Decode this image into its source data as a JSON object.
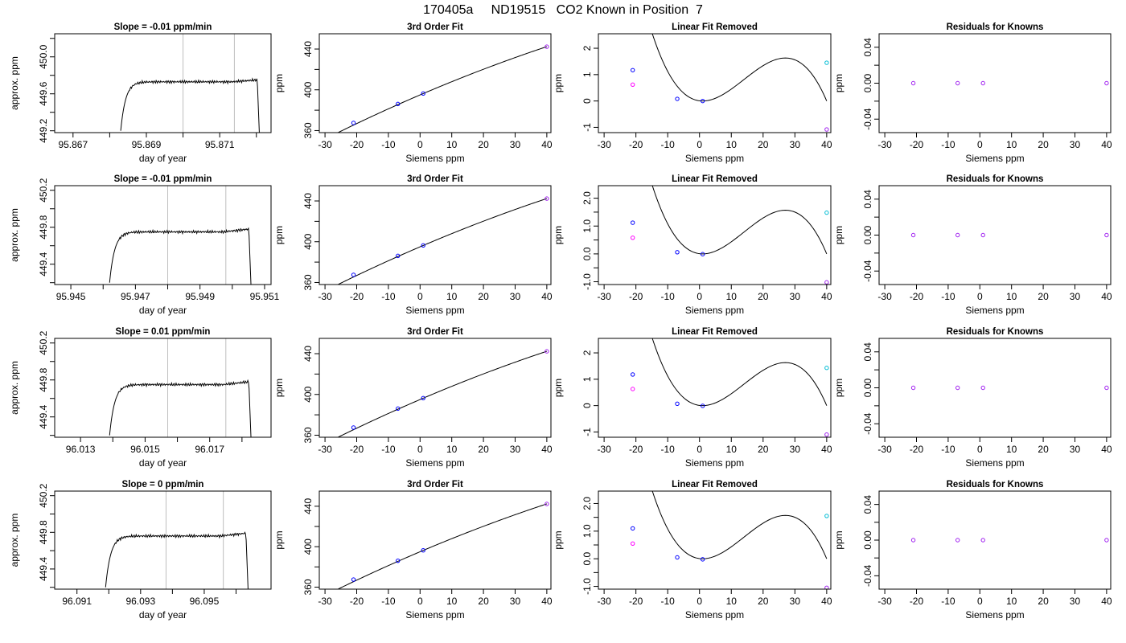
{
  "page": {
    "title": "170405a     ND19515   CO2 Known in Position  7"
  },
  "colors": {
    "axis": "#000000",
    "line": "#000000",
    "vline": "#bebebe",
    "pt_blue": "#0000ff",
    "pt_purple": "#a020f0",
    "pt_magenta": "#ff00ff",
    "pt_cyan": "#00bcd4"
  },
  "chart_data": [
    {
      "type": "line",
      "row": 0,
      "col": 0,
      "title": "Slope =  -0.01  ppm/min",
      "xlabel": "day of year",
      "ylabel": "approx. ppm",
      "xlim": [
        95.8665,
        95.8724
      ],
      "ylim": [
        449.18,
        450.25
      ],
      "xticks": [
        95.867,
        95.869,
        95.871
      ],
      "xticklabels": [
        "95.867",
        "95.869",
        "95.871"
      ],
      "xminor": [
        95.868,
        95.87,
        95.872
      ],
      "yticks": [
        449.2,
        449.6,
        450.0
      ],
      "yticklabels": [
        "449.2",
        "449.6",
        "450.0"
      ],
      "yminor": [
        449.4,
        449.8,
        450.2
      ],
      "vlines": [
        95.87,
        95.8714
      ],
      "trace": {
        "x_start": 95.8683,
        "x_end": 95.8721,
        "plateau": 449.73,
        "start": 449.2,
        "end": 449.75
      }
    },
    {
      "type": "line",
      "row": 1,
      "col": 0,
      "title": "Slope =  -0.01  ppm/min",
      "xlabel": "day of year",
      "ylabel": "approx. ppm",
      "xlim": [
        95.9445,
        95.9512
      ],
      "ylim": [
        449.18,
        450.25
      ],
      "xticks": [
        95.945,
        95.947,
        95.949,
        95.951
      ],
      "xticklabels": [
        "95.945",
        "95.947",
        "95.949",
        "95.951"
      ],
      "xminor": [
        95.946,
        95.948,
        95.95
      ],
      "yticks": [
        449.4,
        449.8,
        450.2
      ],
      "yticklabels": [
        "449.4",
        "449.8",
        "450.2"
      ],
      "yminor": [
        449.2,
        449.6,
        450.0
      ],
      "vlines": [
        95.948,
        95.9498
      ],
      "trace": {
        "x_start": 95.9462,
        "x_end": 95.9506,
        "plateau": 449.75,
        "start": 449.2,
        "end": 449.78
      }
    },
    {
      "type": "line",
      "row": 2,
      "col": 0,
      "title": "Slope =  0.01  ppm/min",
      "xlabel": "day of year",
      "ylabel": "approx. ppm",
      "xlim": [
        96.0122,
        96.0189
      ],
      "ylim": [
        449.18,
        450.25
      ],
      "xticks": [
        96.013,
        96.015,
        96.017
      ],
      "xticklabels": [
        "96.013",
        "96.015",
        "96.017"
      ],
      "xminor": [
        96.014,
        96.016,
        96.018
      ],
      "yticks": [
        449.4,
        449.8,
        450.2
      ],
      "yticklabels": [
        "449.4",
        "449.8",
        "450.2"
      ],
      "yminor": [
        449.2,
        449.6,
        450.0
      ],
      "vlines": [
        96.0157,
        96.0175
      ],
      "trace": {
        "x_start": 96.0139,
        "x_end": 96.0183,
        "plateau": 449.75,
        "start": 449.2,
        "end": 449.78
      }
    },
    {
      "type": "line",
      "row": 3,
      "col": 0,
      "title": "Slope =  0  ppm/min",
      "xlabel": "day of year",
      "ylabel": "approx. ppm",
      "xlim": [
        96.0903,
        96.0971
      ],
      "ylim": [
        449.18,
        450.25
      ],
      "xticks": [
        96.091,
        96.093,
        96.095
      ],
      "xticklabels": [
        "96.091",
        "96.093",
        "96.095"
      ],
      "xminor": [
        96.092,
        96.094,
        96.096
      ],
      "yticks": [
        449.4,
        449.8,
        450.2
      ],
      "yticklabels": [
        "449.4",
        "449.8",
        "450.2"
      ],
      "yminor": [
        449.2,
        449.6,
        450.0
      ],
      "vlines": [
        96.0938,
        96.0956
      ],
      "trace": {
        "x_start": 96.0919,
        "x_end": 96.0964,
        "plateau": 449.76,
        "start": 449.2,
        "end": 449.79
      }
    },
    {
      "type": "line",
      "row": 0,
      "col": 1,
      "title": "3rd Order Fit",
      "xlabel": "Siemens ppm",
      "ylabel": "ppm",
      "xlim": [
        -31.8,
        41.3
      ],
      "ylim": [
        358,
        455
      ],
      "xticks": [
        -30,
        -20,
        -10,
        0,
        10,
        20,
        30,
        40
      ],
      "xticklabels": [
        "-30",
        "-20",
        "-10",
        "0",
        "10",
        "20",
        "30",
        "40"
      ],
      "yticks": [
        360,
        400,
        440
      ],
      "yticklabels": [
        "360",
        "400",
        "440"
      ],
      "yminor": [
        380,
        420
      ],
      "curve": {
        "x0": 395,
        "b": 1.332,
        "c": -0.0037
      },
      "xrange": [
        -30,
        40
      ],
      "points": [
        {
          "x": -21,
          "y": 367.5,
          "color": "pt_blue"
        },
        {
          "x": -7,
          "y": 386.1,
          "color": "pt_blue"
        },
        {
          "x": 1,
          "y": 396.4,
          "color": "pt_blue"
        },
        {
          "x": 40,
          "y": 442.3,
          "color": "pt_purple"
        }
      ]
    },
    {
      "type": "line",
      "row": 1,
      "col": 1,
      "title": "3rd Order Fit",
      "xlabel": "Siemens ppm",
      "ylabel": "ppm",
      "xlim": [
        -31.8,
        41.3
      ],
      "ylim": [
        358,
        455
      ],
      "xticks": [
        -30,
        -20,
        -10,
        0,
        10,
        20,
        30,
        40
      ],
      "xticklabels": [
        "-30",
        "-20",
        "-10",
        "0",
        "10",
        "20",
        "30",
        "40"
      ],
      "yticks": [
        360,
        400,
        440
      ],
      "yticklabels": [
        "360",
        "400",
        "440"
      ],
      "yminor": [
        380,
        420
      ],
      "curve": {
        "x0": 395,
        "b": 1.332,
        "c": -0.0037
      },
      "xrange": [
        -30,
        40
      ],
      "points": [
        {
          "x": -21,
          "y": 367.5,
          "color": "pt_blue"
        },
        {
          "x": -7,
          "y": 386.1,
          "color": "pt_blue"
        },
        {
          "x": 1,
          "y": 396.4,
          "color": "pt_blue"
        },
        {
          "x": 40,
          "y": 442.3,
          "color": "pt_purple"
        }
      ]
    },
    {
      "type": "line",
      "row": 2,
      "col": 1,
      "title": "3rd Order Fit",
      "xlabel": "Siemens ppm",
      "ylabel": "ppm",
      "xlim": [
        -31.8,
        41.3
      ],
      "ylim": [
        358,
        455
      ],
      "xticks": [
        -30,
        -20,
        -10,
        0,
        10,
        20,
        30,
        40
      ],
      "xticklabels": [
        "-30",
        "-20",
        "-10",
        "0",
        "10",
        "20",
        "30",
        "40"
      ],
      "yticks": [
        360,
        400,
        440
      ],
      "yticklabels": [
        "360",
        "400",
        "440"
      ],
      "yminor": [
        380,
        420
      ],
      "curve": {
        "x0": 395,
        "b": 1.332,
        "c": -0.0037
      },
      "xrange": [
        -30,
        40
      ],
      "points": [
        {
          "x": -21,
          "y": 367.5,
          "color": "pt_blue"
        },
        {
          "x": -7,
          "y": 386.1,
          "color": "pt_blue"
        },
        {
          "x": 1,
          "y": 396.4,
          "color": "pt_blue"
        },
        {
          "x": 40,
          "y": 442.3,
          "color": "pt_purple"
        }
      ]
    },
    {
      "type": "line",
      "row": 3,
      "col": 1,
      "title": "3rd Order Fit",
      "xlabel": "Siemens ppm",
      "ylabel": "ppm",
      "xlim": [
        -31.8,
        41.3
      ],
      "ylim": [
        358,
        455
      ],
      "xticks": [
        -30,
        -20,
        -10,
        0,
        10,
        20,
        30,
        40
      ],
      "xticklabels": [
        "-30",
        "-20",
        "-10",
        "0",
        "10",
        "20",
        "30",
        "40"
      ],
      "yticks": [
        360,
        400,
        440
      ],
      "yticklabels": [
        "360",
        "400",
        "440"
      ],
      "yminor": [
        380,
        420
      ],
      "curve": {
        "x0": 395,
        "b": 1.332,
        "c": -0.0037
      },
      "xrange": [
        -30,
        40
      ],
      "points": [
        {
          "x": -21,
          "y": 367.5,
          "color": "pt_blue"
        },
        {
          "x": -7,
          "y": 386.1,
          "color": "pt_blue"
        },
        {
          "x": 1,
          "y": 396.4,
          "color": "pt_blue"
        },
        {
          "x": 40,
          "y": 442.3,
          "color": "pt_purple"
        }
      ]
    },
    {
      "type": "line",
      "row": 0,
      "col": 2,
      "title": "Linear Fit Removed",
      "xlabel": "Siemens ppm",
      "ylabel": "ppm",
      "xlim": [
        -31.8,
        41.3
      ],
      "ylim": [
        -1.2,
        2.55
      ],
      "xticks": [
        -30,
        -20,
        -10,
        0,
        10,
        20,
        30,
        40
      ],
      "xticklabels": [
        "-30",
        "-20",
        "-10",
        "0",
        "10",
        "20",
        "30",
        "40"
      ],
      "yticks": [
        -1,
        0,
        1,
        2
      ],
      "yticklabels": [
        "-1",
        "0",
        "1",
        "2"
      ],
      "residual_curve": {
        "roots": [
          1,
          28
        ],
        "scale": -2.65e-05,
        "offset": 0.95
      },
      "xrange": [
        -30,
        40
      ],
      "points": [
        {
          "x": -21,
          "y": 1.17,
          "color": "pt_blue"
        },
        {
          "x": -21,
          "y": 0.62,
          "color": "pt_magenta"
        },
        {
          "x": -7,
          "y": 0.08,
          "color": "pt_blue"
        },
        {
          "x": 1,
          "y": 0.0,
          "color": "pt_blue"
        },
        {
          "x": 40,
          "y": 1.45,
          "color": "pt_cyan"
        },
        {
          "x": 40,
          "y": -1.08,
          "color": "pt_purple"
        }
      ]
    },
    {
      "type": "line",
      "row": 1,
      "col": 2,
      "title": "Linear Fit Removed",
      "xlabel": "Siemens ppm",
      "ylabel": "ppm",
      "xlim": [
        -31.8,
        41.3
      ],
      "ylim": [
        -1.1,
        2.45
      ],
      "xticks": [
        -30,
        -20,
        -10,
        0,
        10,
        20,
        30,
        40
      ],
      "xticklabels": [
        "-30",
        "-20",
        "-10",
        "0",
        "10",
        "20",
        "30",
        "40"
      ],
      "yticks": [
        -1.0,
        0.0,
        1.0,
        2.0
      ],
      "yticklabels": [
        "-1.0",
        "0.0",
        "1.0",
        "2.0"
      ],
      "yminor": [
        -0.5,
        0.5,
        1.5
      ],
      "residual_curve": {
        "roots": [
          1,
          28
        ],
        "scale": -2.55e-05,
        "offset": 0.95
      },
      "xrange": [
        -30,
        40
      ],
      "points": [
        {
          "x": -21,
          "y": 1.12,
          "color": "pt_blue"
        },
        {
          "x": -21,
          "y": 0.58,
          "color": "pt_magenta"
        },
        {
          "x": -7,
          "y": 0.06,
          "color": "pt_blue"
        },
        {
          "x": 1,
          "y": -0.01,
          "color": "pt_blue"
        },
        {
          "x": 40,
          "y": 1.48,
          "color": "pt_cyan"
        },
        {
          "x": 40,
          "y": -1.02,
          "color": "pt_purple"
        }
      ]
    },
    {
      "type": "line",
      "row": 2,
      "col": 2,
      "title": "Linear Fit Removed",
      "xlabel": "Siemens ppm",
      "ylabel": "ppm",
      "xlim": [
        -31.8,
        41.3
      ],
      "ylim": [
        -1.2,
        2.55
      ],
      "xticks": [
        -30,
        -20,
        -10,
        0,
        10,
        20,
        30,
        40
      ],
      "xticklabels": [
        "-30",
        "-20",
        "-10",
        "0",
        "10",
        "20",
        "30",
        "40"
      ],
      "yticks": [
        -1,
        0,
        1,
        2
      ],
      "yticklabels": [
        "-1",
        "0",
        "1",
        "2"
      ],
      "residual_curve": {
        "roots": [
          1,
          28
        ],
        "scale": -2.65e-05,
        "offset": 0.95
      },
      "xrange": [
        -30,
        40
      ],
      "points": [
        {
          "x": -21,
          "y": 1.18,
          "color": "pt_blue"
        },
        {
          "x": -21,
          "y": 0.63,
          "color": "pt_magenta"
        },
        {
          "x": -7,
          "y": 0.07,
          "color": "pt_blue"
        },
        {
          "x": 1,
          "y": -0.01,
          "color": "pt_blue"
        },
        {
          "x": 40,
          "y": 1.43,
          "color": "pt_cyan"
        },
        {
          "x": 40,
          "y": -1.1,
          "color": "pt_purple"
        }
      ]
    },
    {
      "type": "line",
      "row": 3,
      "col": 2,
      "title": "Linear Fit Removed",
      "xlabel": "Siemens ppm",
      "ylabel": "ppm",
      "xlim": [
        -31.8,
        41.3
      ],
      "ylim": [
        -1.1,
        2.45
      ],
      "xticks": [
        -30,
        -20,
        -10,
        0,
        10,
        20,
        30,
        40
      ],
      "xticklabels": [
        "-30",
        "-20",
        "-10",
        "0",
        "10",
        "20",
        "30",
        "40"
      ],
      "yticks": [
        -1.0,
        0.0,
        1.0,
        2.0
      ],
      "yticklabels": [
        "-1.0",
        "0.0",
        "1.0",
        "2.0"
      ],
      "yminor": [
        -0.5,
        0.5,
        1.5
      ],
      "residual_curve": {
        "roots": [
          1,
          28
        ],
        "scale": -2.55e-05,
        "offset": 0.95
      },
      "xrange": [
        -30,
        40
      ],
      "points": [
        {
          "x": -21,
          "y": 1.1,
          "color": "pt_blue"
        },
        {
          "x": -21,
          "y": 0.55,
          "color": "pt_magenta"
        },
        {
          "x": -7,
          "y": 0.05,
          "color": "pt_blue"
        },
        {
          "x": 1,
          "y": -0.02,
          "color": "pt_blue"
        },
        {
          "x": 40,
          "y": 1.55,
          "color": "pt_cyan"
        },
        {
          "x": 40,
          "y": -1.05,
          "color": "pt_purple"
        }
      ]
    },
    {
      "type": "scatter",
      "row": 0,
      "col": 3,
      "title": "Residuals for Knowns",
      "xlabel": "Siemens ppm",
      "ylabel": "ppm",
      "xlim": [
        -31.8,
        41.3
      ],
      "ylim": [
        -0.055,
        0.055
      ],
      "xticks": [
        -30,
        -20,
        -10,
        0,
        10,
        20,
        30,
        40
      ],
      "xticklabels": [
        "-30",
        "-20",
        "-10",
        "0",
        "10",
        "20",
        "30",
        "40"
      ],
      "yticks": [
        -0.04,
        0.0,
        0.04
      ],
      "yticklabels": [
        "-0.04",
        "0.00",
        "0.04"
      ],
      "yminor": [
        -0.02,
        0.02
      ],
      "points": [
        {
          "x": -21,
          "y": 0,
          "color": "pt_purple"
        },
        {
          "x": -7,
          "y": 0,
          "color": "pt_purple"
        },
        {
          "x": 1,
          "y": 0,
          "color": "pt_purple"
        },
        {
          "x": 40,
          "y": 0,
          "color": "pt_purple"
        }
      ]
    },
    {
      "type": "scatter",
      "row": 1,
      "col": 3,
      "title": "Residuals for Knowns",
      "xlabel": "Siemens ppm",
      "ylabel": "ppm",
      "xlim": [
        -31.8,
        41.3
      ],
      "ylim": [
        -0.055,
        0.055
      ],
      "xticks": [
        -30,
        -20,
        -10,
        0,
        10,
        20,
        30,
        40
      ],
      "xticklabels": [
        "-30",
        "-20",
        "-10",
        "0",
        "10",
        "20",
        "30",
        "40"
      ],
      "yticks": [
        -0.04,
        0.0,
        0.04
      ],
      "yticklabels": [
        "-0.04",
        "0.00",
        "0.04"
      ],
      "yminor": [
        -0.02,
        0.02
      ],
      "points": [
        {
          "x": -21,
          "y": 0,
          "color": "pt_purple"
        },
        {
          "x": -7,
          "y": 0,
          "color": "pt_purple"
        },
        {
          "x": 1,
          "y": 0,
          "color": "pt_purple"
        },
        {
          "x": 40,
          "y": 0,
          "color": "pt_purple"
        }
      ]
    },
    {
      "type": "scatter",
      "row": 2,
      "col": 3,
      "title": "Residuals for Knowns",
      "xlabel": "Siemens ppm",
      "ylabel": "ppm",
      "xlim": [
        -31.8,
        41.3
      ],
      "ylim": [
        -0.055,
        0.055
      ],
      "xticks": [
        -30,
        -20,
        -10,
        0,
        10,
        20,
        30,
        40
      ],
      "xticklabels": [
        "-30",
        "-20",
        "-10",
        "0",
        "10",
        "20",
        "30",
        "40"
      ],
      "yticks": [
        -0.04,
        0.0,
        0.04
      ],
      "yticklabels": [
        "-0.04",
        "0.00",
        "0.04"
      ],
      "yminor": [
        -0.02,
        0.02
      ],
      "points": [
        {
          "x": -21,
          "y": 0,
          "color": "pt_purple"
        },
        {
          "x": -7,
          "y": 0,
          "color": "pt_purple"
        },
        {
          "x": 1,
          "y": 0,
          "color": "pt_purple"
        },
        {
          "x": 40,
          "y": 0,
          "color": "pt_purple"
        }
      ]
    },
    {
      "type": "scatter",
      "row": 3,
      "col": 3,
      "title": "Residuals for Knowns",
      "xlabel": "Siemens ppm",
      "ylabel": "ppm",
      "xlim": [
        -31.8,
        41.3
      ],
      "ylim": [
        -0.055,
        0.055
      ],
      "xticks": [
        -30,
        -20,
        -10,
        0,
        10,
        20,
        30,
        40
      ],
      "xticklabels": [
        "-30",
        "-20",
        "-10",
        "0",
        "10",
        "20",
        "30",
        "40"
      ],
      "yticks": [
        -0.04,
        0.0,
        0.04
      ],
      "yticklabels": [
        "-0.04",
        "0.00",
        "0.04"
      ],
      "yminor": [
        -0.02,
        0.02
      ],
      "points": [
        {
          "x": -21,
          "y": 0,
          "color": "pt_purple"
        },
        {
          "x": -7,
          "y": 0,
          "color": "pt_purple"
        },
        {
          "x": 1,
          "y": 0,
          "color": "pt_purple"
        },
        {
          "x": 40,
          "y": 0,
          "color": "pt_purple"
        }
      ]
    }
  ]
}
